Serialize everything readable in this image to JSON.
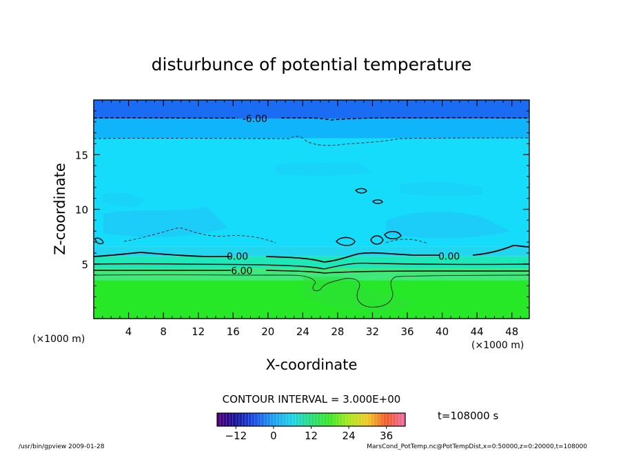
{
  "chart_data": {
    "type": "heatmap",
    "title": "disturbunce of potential temperature",
    "xlabel": "X-coordinate",
    "ylabel": "Z-coordinate",
    "x_unit": "(×1000 m)",
    "y_unit": "(×1000 m)",
    "xlim": [
      0,
      50
    ],
    "ylim": [
      0,
      20
    ],
    "x_ticks": [
      4,
      8,
      12,
      16,
      20,
      24,
      28,
      32,
      36,
      40,
      44,
      48
    ],
    "y_ticks": [
      5,
      10,
      15
    ],
    "contour_interval": "CONTOUR INTERVAL = 3.000E+00",
    "contour_levels": [
      -6,
      -3,
      0,
      3,
      6
    ],
    "contour_labels": [
      {
        "text": "-6.00",
        "x": 18.5,
        "z": 18.3
      },
      {
        "text": "0.00",
        "x": 16.5,
        "z": 5.7
      },
      {
        "text": "0.00",
        "x": 40.8,
        "z": 5.7
      },
      {
        "text": "6.00",
        "x": 17.0,
        "z": 4.4
      }
    ],
    "bands": [
      {
        "z_from": 0,
        "z_to": 3.5,
        "value": 9,
        "color": "#27e827"
      },
      {
        "z_from": 3.5,
        "z_to": 4.6,
        "value": 6,
        "color": "#3fe878"
      },
      {
        "z_from": 4.6,
        "z_to": 5.7,
        "value": 3,
        "color": "#1ee8b8"
      },
      {
        "z_from": 5.7,
        "z_to": 6.6,
        "value": 0,
        "color": "#22d6f0"
      },
      {
        "z_from": 6.6,
        "z_to": 16.5,
        "value": -3,
        "color": "#14dcfa"
      },
      {
        "z_from": 16.5,
        "z_to": 18.3,
        "value": -6,
        "color": "#10b4fa"
      },
      {
        "z_from": 18.3,
        "z_to": 20,
        "value": -9,
        "color": "#1a6cf2"
      }
    ],
    "colorbar": {
      "min": -18,
      "max": 42,
      "tick_values": [
        -12,
        0,
        12,
        24,
        36
      ],
      "tick_labels": [
        "−12",
        "0",
        "12",
        "24",
        "36"
      ]
    },
    "time": "t=108000 s"
  },
  "footer": {
    "left": "/usr/bin/gpview  2009-01-28",
    "right": "MarsCond_PotTemp.nc@PotTempDist,x=0:50000,z=0:20000,t=108000"
  }
}
